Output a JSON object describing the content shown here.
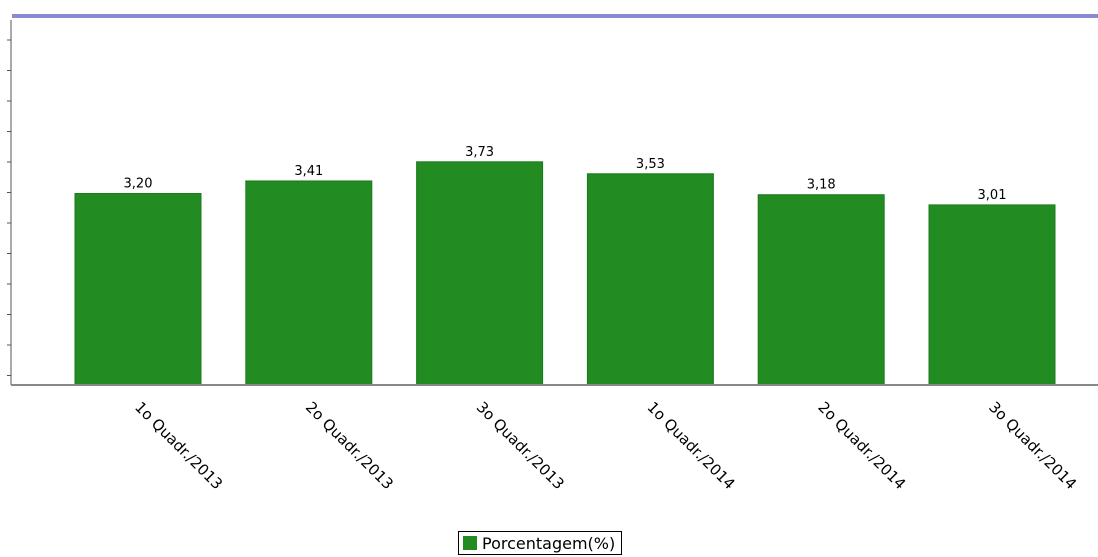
{
  "chart_data": {
    "type": "bar",
    "categories": [
      "1o Quadr./2013",
      "2o Quadr./2013",
      "3o Quadr./2013",
      "1o Quadr./2014",
      "2o Quadr./2014",
      "3o Quadr./2014"
    ],
    "series": [
      {
        "name": "Porcentagem(%)",
        "values": [
          3.2,
          3.41,
          3.73,
          3.53,
          3.18,
          3.01
        ]
      }
    ],
    "data_labels": [
      "3,20",
      "3,41",
      "3,73",
      "3,53",
      "3,18",
      "3,01"
    ],
    "ylim": [
      0,
      6.1
    ],
    "grid": false,
    "legend_position": "bottom-center",
    "colors": {
      "bar": "#228b22",
      "bar_edge": "#1c7a1c",
      "top_line": "#8a8ad2",
      "axis": "#888888"
    }
  },
  "legend": {
    "label": "Porcentagem(%)"
  }
}
